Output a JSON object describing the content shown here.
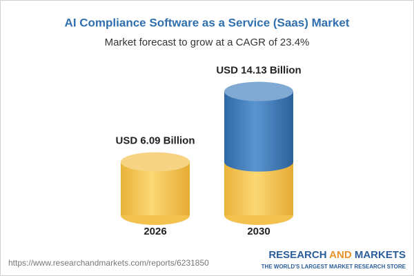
{
  "chart_data": {
    "type": "bar",
    "title": "AI Compliance Software as a Service (Saas) Market",
    "subtitle": "Market forecast to grow at a CAGR of 23.4%",
    "categories": [
      "2026",
      "2030"
    ],
    "values": [
      6.09,
      14.13
    ],
    "value_labels": [
      "USD 6.09 Billion",
      "USD 14.13 Billion"
    ],
    "colors": [
      "#f3c14e",
      "#4a84c2"
    ]
  },
  "footer": {
    "url": "https://www.researchandmarkets.com/reports/6231850",
    "logo": [
      "RESEARCH",
      "AND",
      "MARKETS"
    ],
    "tagline": "THE WORLD'S LARGEST MARKET RESEARCH STORE"
  }
}
